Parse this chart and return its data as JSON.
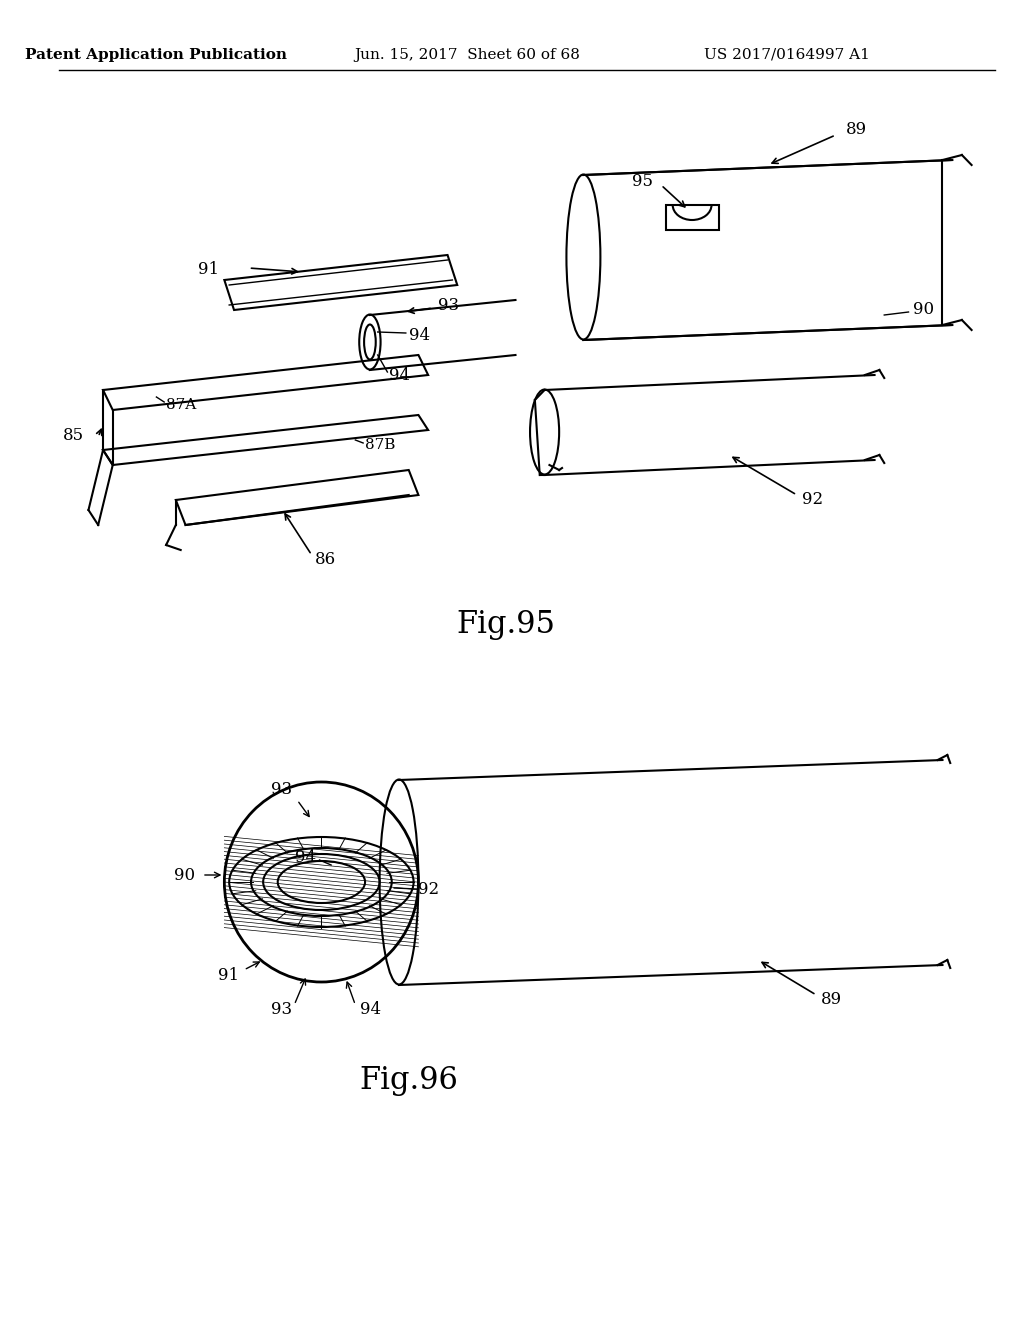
{
  "background_color": "#ffffff",
  "header_left": "Patent Application Publication",
  "header_center": "Jun. 15, 2017  Sheet 60 of 68",
  "header_right": "US 2017/0164997 A1",
  "fig95_label": "Fig.95",
  "fig96_label": "Fig.96",
  "text_color": "#000000",
  "line_color": "#000000",
  "header_fontsize": 11,
  "fig_label_fontsize": 22,
  "annotation_fontsize": 12
}
